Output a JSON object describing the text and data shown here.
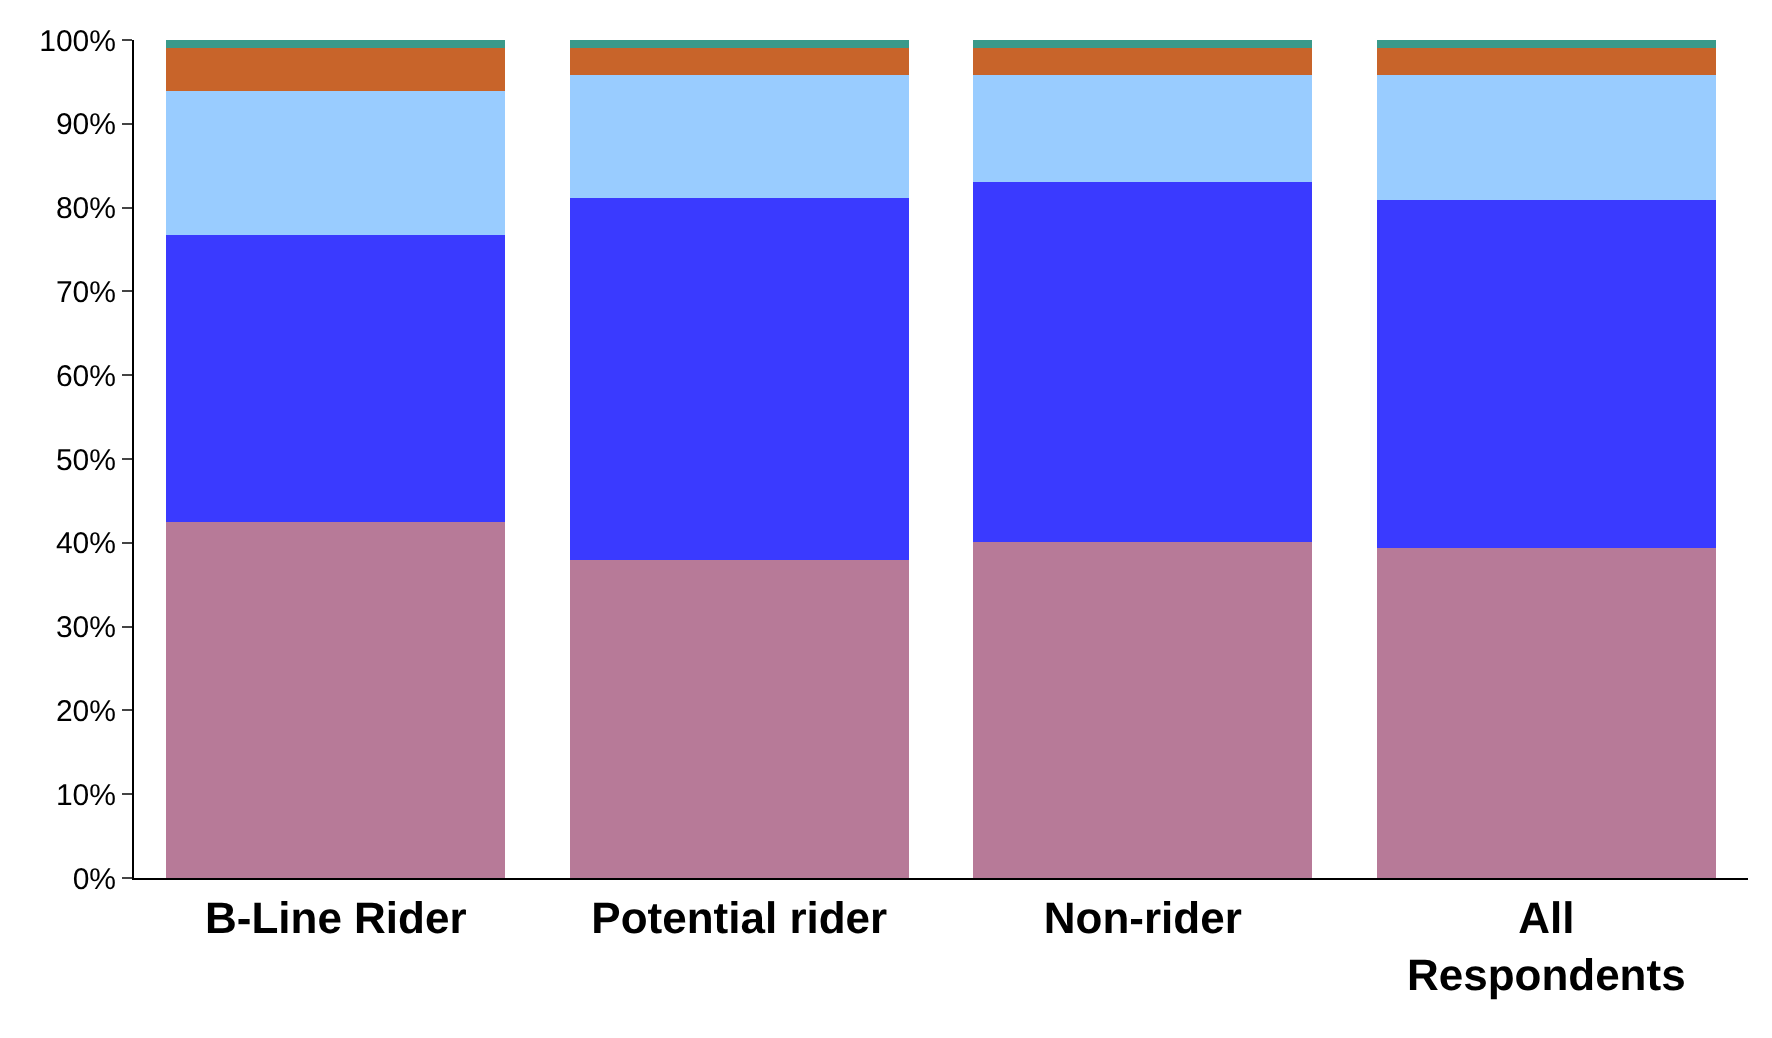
{
  "chart_data": {
    "type": "bar",
    "stacked": true,
    "categories": [
      "B-Line Rider",
      "Potential rider",
      "Non-rider",
      "All Respondents"
    ],
    "series": [
      {
        "color": "#b77a98",
        "values": [
          42.5,
          38.0,
          40.1,
          39.4
        ]
      },
      {
        "color": "#3a3aff",
        "values": [
          34.2,
          43.1,
          42.9,
          41.5
        ]
      },
      {
        "color": "#99ccff",
        "values": [
          17.2,
          14.7,
          12.8,
          14.9
        ]
      },
      {
        "color": "#c8642a",
        "values": [
          5.1,
          3.2,
          3.2,
          3.2
        ]
      },
      {
        "color": "#3a9a8a",
        "values": [
          1.0,
          1.0,
          1.0,
          1.0
        ]
      }
    ],
    "ylim": [
      0,
      100
    ],
    "yticks": [
      {
        "value": 0,
        "label": "0%"
      },
      {
        "value": 10,
        "label": "10%"
      },
      {
        "value": 20,
        "label": "20%"
      },
      {
        "value": 30,
        "label": "30%"
      },
      {
        "value": 40,
        "label": "40%"
      },
      {
        "value": 50,
        "label": "50%"
      },
      {
        "value": 60,
        "label": "60%"
      },
      {
        "value": 70,
        "label": "70%"
      },
      {
        "value": 80,
        "label": "80%"
      },
      {
        "value": 90,
        "label": "90%"
      },
      {
        "value": 100,
        "label": "100%"
      }
    ],
    "tick_labels": "xy"
  }
}
